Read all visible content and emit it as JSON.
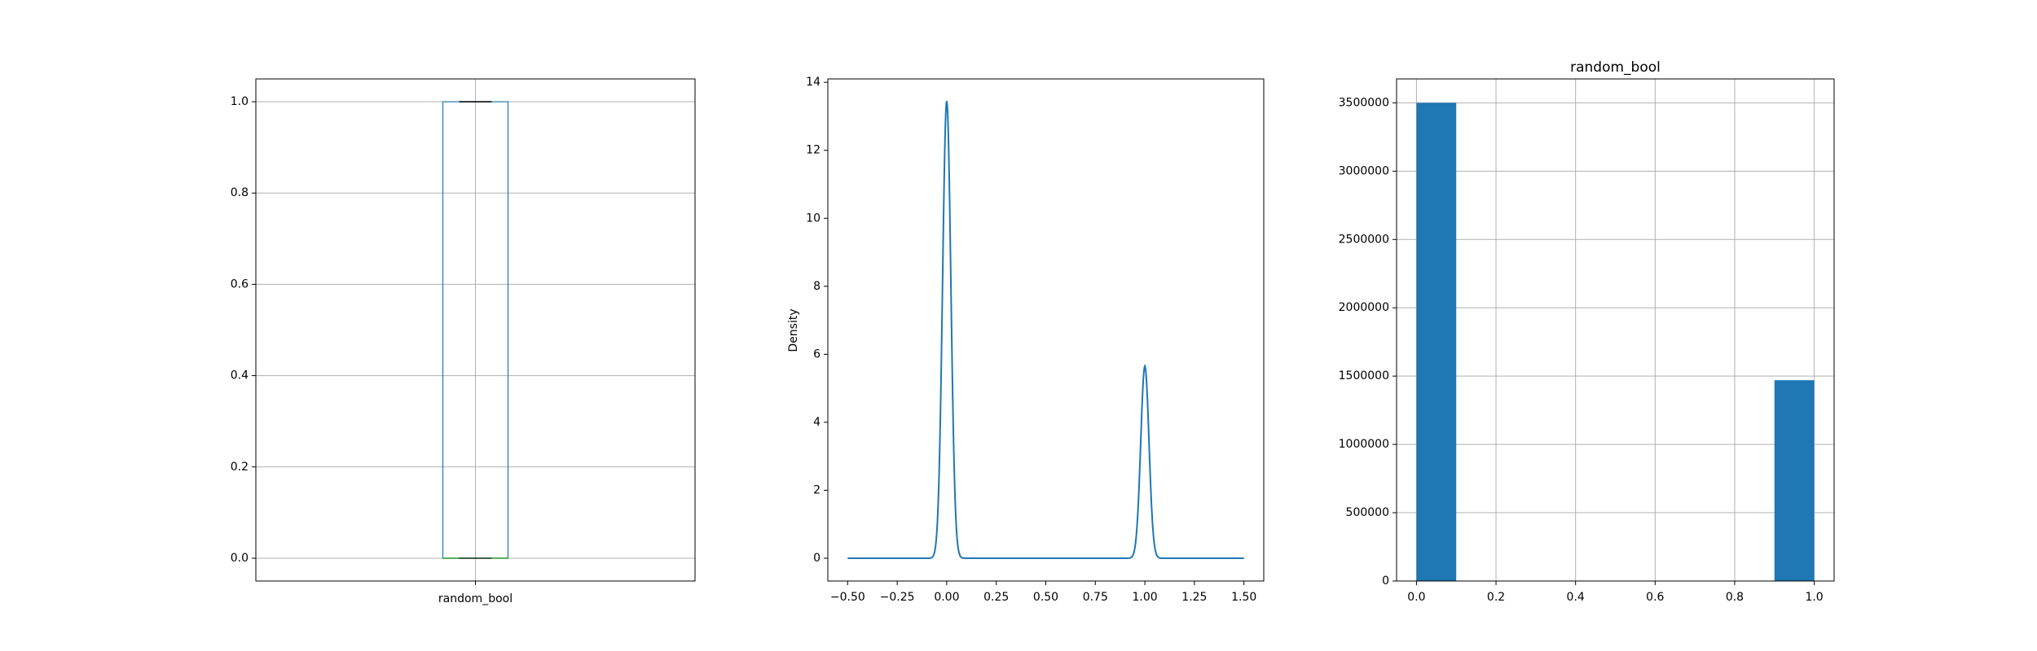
{
  "chart_data": [
    {
      "type": "box",
      "title": "",
      "xlabel": "",
      "ylabel": "",
      "categories": [
        "random_bool"
      ],
      "box": {
        "min": 0.0,
        "q1": 0.0,
        "median": 0.0,
        "q3": 1.0,
        "max": 1.0
      },
      "ylim": [
        -0.05,
        1.05
      ],
      "yticks": [
        0.0,
        0.2,
        0.4,
        0.6,
        0.8,
        1.0
      ],
      "ytick_labels": [
        "0.0",
        "0.2",
        "0.4",
        "0.6",
        "0.8",
        "1.0"
      ],
      "grid": true,
      "colors": {
        "box": "#1f77b4",
        "median": "#2ca02c",
        "whisker": "#000000"
      }
    },
    {
      "type": "line",
      "title": "",
      "xlabel": "",
      "ylabel": "Density",
      "xlim": [
        -0.6,
        1.6
      ],
      "ylim": [
        -0.67,
        14.1
      ],
      "xticks": [
        -0.5,
        -0.25,
        0.0,
        0.25,
        0.5,
        0.75,
        1.0,
        1.25,
        1.5
      ],
      "xtick_labels": [
        "−0.50",
        "−0.25",
        "0.00",
        "0.25",
        "0.50",
        "0.75",
        "1.00",
        "1.25",
        "1.50"
      ],
      "yticks": [
        0,
        2,
        4,
        6,
        8,
        10,
        12,
        14
      ],
      "ytick_labels": [
        "0",
        "2",
        "4",
        "6",
        "8",
        "10",
        "12",
        "14"
      ],
      "grid": false,
      "series": [
        {
          "peaks": [
            {
              "x": 0.0,
              "y": 13.45,
              "sigma": 0.0209
            },
            {
              "x": 1.0,
              "y": 5.65,
              "sigma": 0.0209
            }
          ],
          "x_range": [
            -0.5,
            1.5
          ]
        }
      ],
      "colors": {
        "line": "#1f77b4"
      }
    },
    {
      "type": "bar",
      "title": "random_bool",
      "xlabel": "",
      "ylabel": "",
      "bins": [
        {
          "x0": 0.0,
          "x1": 0.1,
          "value": 3500000
        },
        {
          "x0": 0.9,
          "x1": 1.0,
          "value": 1470000
        }
      ],
      "xlim": [
        -0.05,
        1.05
      ],
      "ylim": [
        0,
        3675000
      ],
      "xticks": [
        0.0,
        0.2,
        0.4,
        0.6,
        0.8,
        1.0
      ],
      "xtick_labels": [
        "0.0",
        "0.2",
        "0.4",
        "0.6",
        "0.8",
        "1.0"
      ],
      "yticks": [
        0,
        500000,
        1000000,
        1500000,
        2000000,
        2500000,
        3000000,
        3500000
      ],
      "ytick_labels": [
        "0",
        "500000",
        "1000000",
        "1500000",
        "2000000",
        "2500000",
        "3000000",
        "3500000"
      ],
      "grid": true,
      "colors": {
        "bar": "#1f77b4"
      }
    }
  ]
}
